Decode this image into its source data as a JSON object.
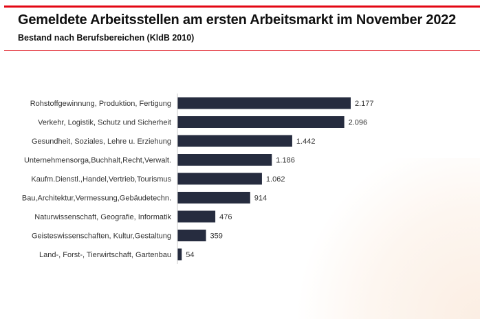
{
  "header": {
    "title": "Gemeldete Arbeitsstellen am ersten Arbeitsmarkt im November 2022",
    "subtitle": "Bestand nach Berufsbereichen (KldB 2010)"
  },
  "colors": {
    "accent": "#e30613",
    "bar": "#262c3f"
  },
  "chart_data": {
    "type": "bar",
    "orientation": "horizontal",
    "categories": [
      "Rohstoffgewinnung, Produktion, Fertigung",
      "Verkehr, Logistik, Schutz und Sicherheit",
      "Gesundheit, Soziales, Lehre u. Erziehung",
      "Unternehmensorga,Buchhalt,Recht,Verwalt.",
      "Kaufm.Dienstl.,Handel,Vertrieb,Tourismus",
      "Bau,Architektur,Vermessung,Gebäudetechn.",
      "Naturwissenschaft, Geografie, Informatik",
      "Geisteswissenschaften, Kultur,Gestaltung",
      "Land-, Forst-, Tierwirtschaft, Gartenbau"
    ],
    "values": [
      2177,
      2096,
      1442,
      1186,
      1062,
      914,
      476,
      359,
      54
    ],
    "labels": [
      "2.177",
      "2.096",
      "1.442",
      "1.186",
      "1.062",
      "914",
      "476",
      "359",
      "54"
    ],
    "xlim": [
      0,
      2177
    ],
    "grid": false,
    "legend": "none"
  }
}
